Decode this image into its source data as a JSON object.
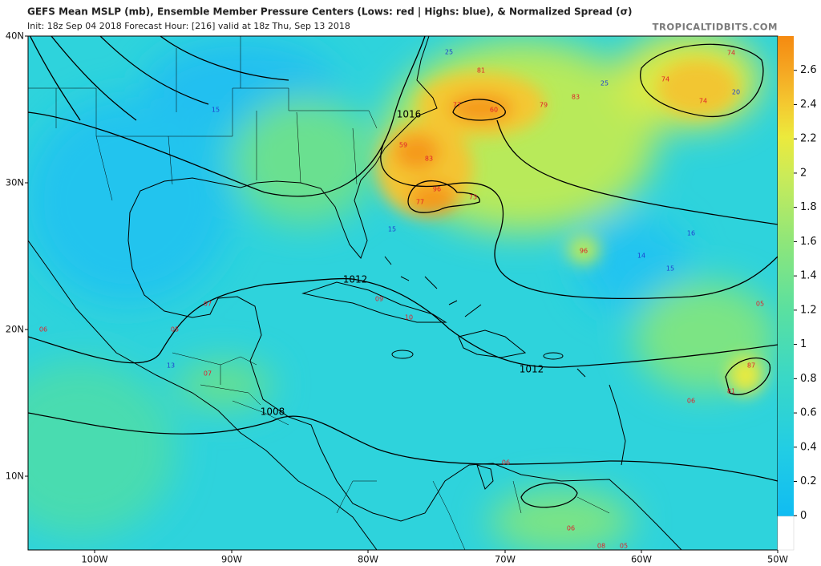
{
  "header": {
    "title": "GEFS Mean MSLP (mb), Ensemble Member Pressure Centers (Lows: red | Highs: blue), & Normalized Spread (σ)",
    "subtitle": "Init: 18z Sep 04 2018   Forecast Hour: [216]   valid at 18z Thu, Sep 13 2018",
    "source": "TROPICALTIDBITS.COM"
  },
  "map": {
    "lat_labels": [
      "40N",
      "30N",
      "20N",
      "10N"
    ],
    "lon_labels": [
      "100W",
      "90W",
      "80W",
      "70W",
      "60W",
      "50W"
    ],
    "isobar_labels": [
      "1016",
      "1012",
      "1012",
      "1008"
    ],
    "lows": [
      "81",
      "77",
      "60",
      "79",
      "83",
      "59",
      "83",
      "96",
      "77",
      "73",
      "74",
      "74",
      "74",
      "96",
      "87",
      "81",
      "06",
      "05",
      "07",
      "06",
      "05",
      "07",
      "10",
      "09",
      "06",
      "06",
      "08",
      "05"
    ],
    "highs": [
      "25",
      "25",
      "20",
      "15",
      "15",
      "16",
      "14",
      "15",
      "13"
    ]
  },
  "colorbar": {
    "range": [
      -0.2,
      2.8
    ],
    "ticks": [
      2.6,
      2.4,
      2.2,
      2,
      1.8,
      1.6,
      1.4,
      1.2,
      1,
      0.8,
      0.6,
      0.4,
      0.2,
      0
    ]
  }
}
